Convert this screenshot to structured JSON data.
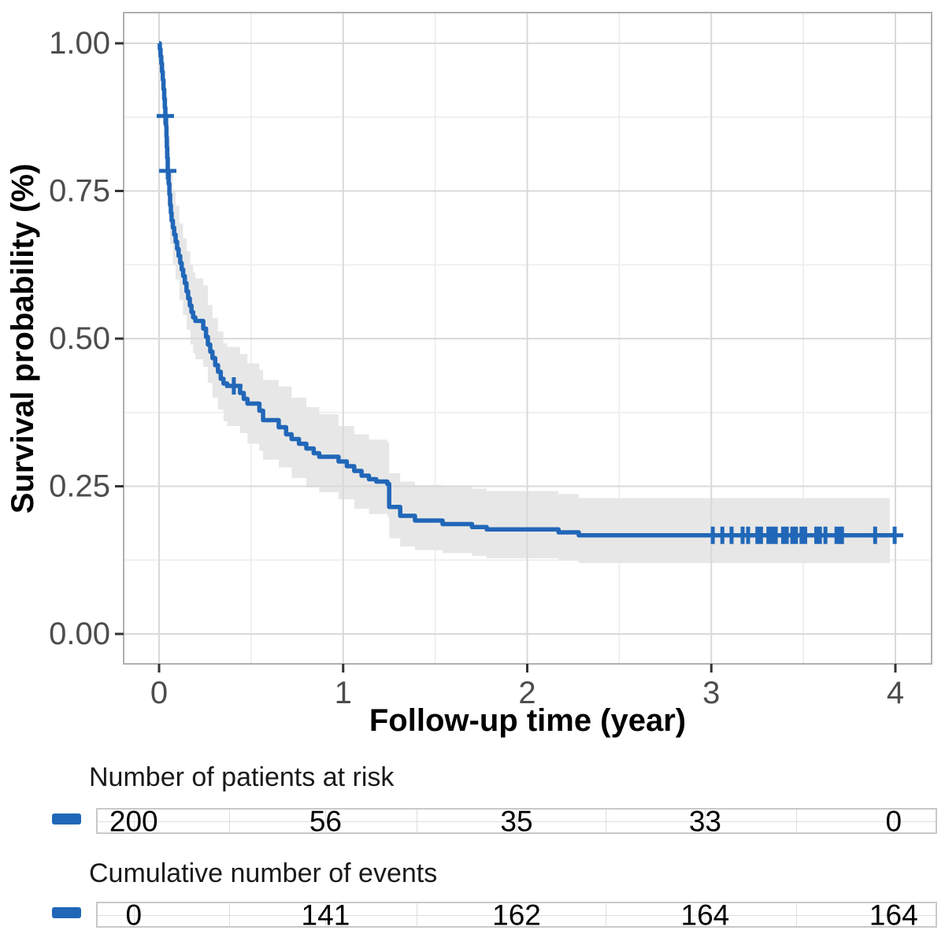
{
  "chart_data": {
    "type": "line",
    "subtype": "kaplan-meier-step",
    "title": "",
    "xlabel": "Follow-up time (year)",
    "ylabel": "Survival probability (%)",
    "xlim": [
      0,
      4
    ],
    "ylim": [
      0.0,
      1.0
    ],
    "x_ticks": [
      "0",
      "1",
      "2",
      "3",
      "4"
    ],
    "x_tick_values": [
      0,
      1,
      2,
      3,
      4
    ],
    "y_ticks": [
      "0.00",
      "0.25",
      "0.50",
      "0.75",
      "1.00"
    ],
    "y_tick_values": [
      0.0,
      0.25,
      0.5,
      0.75,
      1.0
    ],
    "x_minor_ticks": [
      0.5,
      1.5,
      2.5,
      3.5
    ],
    "y_minor_ticks": [
      0.125,
      0.375,
      0.625,
      0.875
    ],
    "grid": "on",
    "legend_position": "none",
    "curve_color": "#2167b8",
    "band_color": "#e7e7e7",
    "major_grid_color": "#d9d9d9",
    "minor_grid_color": "#efefef",
    "panel_border_color": "#b0b0b0",
    "tick_label_color": "#4d4d4d",
    "survival_steps": [
      [
        0.0,
        1.0
      ],
      [
        0.004,
        0.99
      ],
      [
        0.008,
        0.978
      ],
      [
        0.012,
        0.966
      ],
      [
        0.016,
        0.952
      ],
      [
        0.02,
        0.938
      ],
      [
        0.024,
        0.922
      ],
      [
        0.028,
        0.906
      ],
      [
        0.031,
        0.891
      ],
      [
        0.034,
        0.877
      ],
      [
        0.038,
        0.86
      ],
      [
        0.04,
        0.842
      ],
      [
        0.042,
        0.824
      ],
      [
        0.044,
        0.806
      ],
      [
        0.047,
        0.784
      ],
      [
        0.052,
        0.762
      ],
      [
        0.056,
        0.744
      ],
      [
        0.06,
        0.726
      ],
      [
        0.064,
        0.713
      ],
      [
        0.068,
        0.7
      ],
      [
        0.075,
        0.688
      ],
      [
        0.082,
        0.676
      ],
      [
        0.09,
        0.664
      ],
      [
        0.098,
        0.652
      ],
      [
        0.106,
        0.64
      ],
      [
        0.115,
        0.628
      ],
      [
        0.123,
        0.617
      ],
      [
        0.131,
        0.606
      ],
      [
        0.14,
        0.594
      ],
      [
        0.149,
        0.58
      ],
      [
        0.158,
        0.568
      ],
      [
        0.167,
        0.556
      ],
      [
        0.176,
        0.545
      ],
      [
        0.185,
        0.536
      ],
      [
        0.197,
        0.53
      ],
      [
        0.24,
        0.517
      ],
      [
        0.255,
        0.503
      ],
      [
        0.265,
        0.49
      ],
      [
        0.278,
        0.478
      ],
      [
        0.29,
        0.467
      ],
      [
        0.305,
        0.455
      ],
      [
        0.32,
        0.444
      ],
      [
        0.335,
        0.432
      ],
      [
        0.35,
        0.424
      ],
      [
        0.37,
        0.42
      ],
      [
        0.44,
        0.408
      ],
      [
        0.46,
        0.398
      ],
      [
        0.48,
        0.39
      ],
      [
        0.545,
        0.378
      ],
      [
        0.565,
        0.362
      ],
      [
        0.65,
        0.35
      ],
      [
        0.69,
        0.338
      ],
      [
        0.72,
        0.33
      ],
      [
        0.76,
        0.322
      ],
      [
        0.8,
        0.314
      ],
      [
        0.84,
        0.306
      ],
      [
        0.87,
        0.3
      ],
      [
        0.975,
        0.292
      ],
      [
        1.02,
        0.284
      ],
      [
        1.06,
        0.276
      ],
      [
        1.1,
        0.268
      ],
      [
        1.14,
        0.262
      ],
      [
        1.18,
        0.258
      ],
      [
        1.24,
        0.254
      ],
      [
        1.25,
        0.215
      ],
      [
        1.31,
        0.2
      ],
      [
        1.39,
        0.192
      ],
      [
        1.54,
        0.186
      ],
      [
        1.7,
        0.181
      ],
      [
        1.78,
        0.177
      ],
      [
        2.17,
        0.172
      ],
      [
        2.28,
        0.167
      ],
      [
        4.0,
        0.167
      ]
    ],
    "confidence_band": [
      [
        0.034,
        0.845,
        0.91
      ],
      [
        0.047,
        0.73,
        0.838
      ],
      [
        0.06,
        0.66,
        0.785
      ],
      [
        0.075,
        0.625,
        0.75
      ],
      [
        0.09,
        0.6,
        0.725
      ],
      [
        0.11,
        0.565,
        0.695
      ],
      [
        0.13,
        0.54,
        0.67
      ],
      [
        0.15,
        0.515,
        0.648
      ],
      [
        0.17,
        0.49,
        0.625
      ],
      [
        0.185,
        0.475,
        0.612
      ],
      [
        0.197,
        0.465,
        0.602
      ],
      [
        0.24,
        0.452,
        0.59
      ],
      [
        0.265,
        0.425,
        0.557
      ],
      [
        0.29,
        0.4,
        0.535
      ],
      [
        0.32,
        0.38,
        0.512
      ],
      [
        0.35,
        0.36,
        0.492
      ],
      [
        0.37,
        0.352,
        0.486
      ],
      [
        0.44,
        0.34,
        0.474
      ],
      [
        0.48,
        0.322,
        0.458
      ],
      [
        0.545,
        0.31,
        0.447
      ],
      [
        0.565,
        0.295,
        0.43
      ],
      [
        0.65,
        0.282,
        0.419
      ],
      [
        0.72,
        0.264,
        0.4
      ],
      [
        0.8,
        0.248,
        0.384
      ],
      [
        0.87,
        0.24,
        0.372
      ],
      [
        0.975,
        0.228,
        0.352
      ],
      [
        1.06,
        0.212,
        0.338
      ],
      [
        1.14,
        0.203,
        0.329
      ],
      [
        1.24,
        0.198,
        0.325
      ],
      [
        1.25,
        0.162,
        0.272
      ],
      [
        1.31,
        0.148,
        0.258
      ],
      [
        1.39,
        0.142,
        0.252
      ],
      [
        1.54,
        0.137,
        0.249
      ],
      [
        1.7,
        0.132,
        0.246
      ],
      [
        1.78,
        0.128,
        0.242
      ],
      [
        2.17,
        0.124,
        0.237
      ],
      [
        2.28,
        0.12,
        0.23
      ],
      [
        3.97,
        0.12,
        0.23
      ]
    ],
    "censor_marks": [
      [
        0.034,
        0.877
      ],
      [
        0.047,
        0.784
      ],
      [
        0.406,
        0.42
      ],
      [
        3.008,
        0.167
      ],
      [
        3.06,
        0.167
      ],
      [
        3.11,
        0.167
      ],
      [
        3.17,
        0.167
      ],
      [
        3.2,
        0.167
      ],
      [
        3.25,
        0.167
      ],
      [
        3.27,
        0.167
      ],
      [
        3.31,
        0.167
      ],
      [
        3.33,
        0.167
      ],
      [
        3.35,
        0.167
      ],
      [
        3.39,
        0.167
      ],
      [
        3.41,
        0.167
      ],
      [
        3.44,
        0.167
      ],
      [
        3.46,
        0.167
      ],
      [
        3.49,
        0.167
      ],
      [
        3.51,
        0.167
      ],
      [
        3.57,
        0.167
      ],
      [
        3.59,
        0.167
      ],
      [
        3.62,
        0.167
      ],
      [
        3.68,
        0.167
      ],
      [
        3.7,
        0.167
      ],
      [
        3.71,
        0.167
      ],
      [
        3.89,
        0.167
      ],
      [
        3.996,
        0.167
      ]
    ]
  },
  "risk_table": {
    "title": "Number of patients at risk",
    "values": [
      "200",
      "56",
      "35",
      "33",
      "0"
    ]
  },
  "events_table": {
    "title": "Cumulative number of events",
    "values": [
      "0",
      "141",
      "162",
      "164",
      "164"
    ]
  }
}
